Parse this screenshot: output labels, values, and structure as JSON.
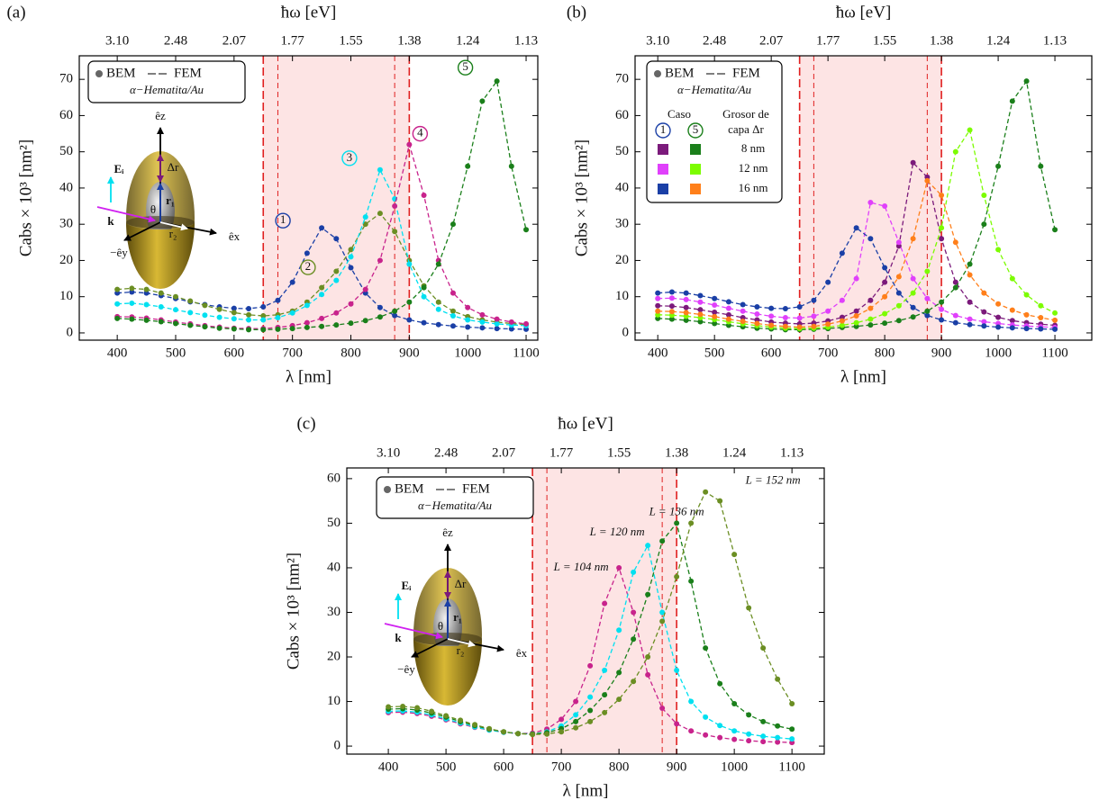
{
  "chart_data": [
    {
      "type": "line",
      "panel": "(a)",
      "x2label": "ħω [eV]",
      "xlabel": "λ [nm]",
      "ylabel": "Cabs × 10³ [nm²]",
      "x": [
        400,
        425,
        450,
        475,
        500,
        525,
        550,
        575,
        600,
        625,
        650,
        675,
        700,
        725,
        750,
        775,
        800,
        825,
        850,
        875,
        900,
        925,
        950,
        975,
        1000,
        1025,
        1050,
        1075,
        1100
      ],
      "xlim": [
        335,
        1120
      ],
      "xticks": [
        400,
        500,
        600,
        700,
        800,
        900,
        1000,
        1100
      ],
      "x2ticks": [
        {
          "value": 400,
          "label": "3.10"
        },
        {
          "value": 500,
          "label": "2.48"
        },
        {
          "value": 600,
          "label": "2.07"
        },
        {
          "value": 700,
          "label": "1.77"
        },
        {
          "value": 800,
          "label": "1.55"
        },
        {
          "value": 900,
          "label": "1.38"
        },
        {
          "value": 1000,
          "label": "1.24"
        },
        {
          "value": 1100,
          "label": "1.13"
        }
      ],
      "ylim": [
        -2,
        76.5
      ],
      "yticks": [
        0,
        10,
        20,
        30,
        40,
        50,
        60,
        70
      ],
      "band": [
        650,
        900
      ],
      "band_color": "#fde4e4",
      "vlines": [
        650,
        675,
        875,
        900
      ],
      "vline_color": "#e02020",
      "legend": {
        "markers": "BEM",
        "lines": "FEM",
        "material": "α−Hematita/Au"
      },
      "inset": {
        "ez": "êz",
        "ex": "êx",
        "ey": "−êy",
        "dr": "Δr",
        "r1": "r₁",
        "r2": "r₂",
        "theta": "θ",
        "E": "Eᵢ",
        "k": "k"
      },
      "series": [
        {
          "name": "1",
          "color": "#1a3fa6",
          "values": [
            11,
            11.3,
            11,
            10.3,
            9.5,
            8.6,
            7.8,
            7.2,
            6.8,
            6.7,
            7.2,
            9,
            14,
            22,
            29,
            26,
            18,
            11,
            7,
            4.8,
            3.6,
            2.8,
            2.3,
            1.9,
            1.6,
            1.4,
            1.2,
            1.1,
            1
          ]
        },
        {
          "name": "2",
          "color": "#6b8e23",
          "values": [
            12,
            12.3,
            12,
            11,
            10,
            8.8,
            7.6,
            6.5,
            5.6,
            5,
            4.7,
            5,
            6,
            8.5,
            12.5,
            17,
            23,
            30,
            33,
            28,
            20,
            13,
            8.5,
            6,
            4.5,
            3.6,
            3,
            2.6,
            2.3
          ]
        },
        {
          "name": "3",
          "color": "#00e0f0",
          "values": [
            8,
            8.2,
            7.8,
            7.2,
            6.4,
            5.6,
            4.9,
            4.3,
            3.9,
            3.6,
            3.6,
            4.2,
            5.5,
            7.6,
            10.6,
            14.5,
            21,
            32,
            45,
            37,
            19,
            10,
            6.5,
            4.7,
            3.6,
            3,
            2.5,
            2.2,
            2
          ]
        },
        {
          "name": "4",
          "color": "#c8238c",
          "values": [
            4.5,
            4.4,
            4.1,
            3.6,
            3,
            2.5,
            2,
            1.6,
            1.3,
            1.2,
            1.2,
            1.5,
            2,
            2.8,
            4,
            5.5,
            8,
            12,
            20,
            35,
            52,
            38,
            20,
            11,
            7,
            5,
            3.8,
            3,
            2.5
          ]
        },
        {
          "name": "5",
          "color": "#1a7f1a",
          "values": [
            4,
            3.8,
            3.5,
            3.1,
            2.6,
            2.1,
            1.7,
            1.3,
            1.1,
            0.9,
            0.9,
            1,
            1.2,
            1.5,
            1.8,
            2.2,
            2.7,
            3.4,
            4.4,
            6,
            8.5,
            12.5,
            19,
            30,
            46,
            64,
            69.5,
            46,
            28.5
          ]
        }
      ]
    },
    {
      "type": "line",
      "panel": "(b)",
      "x2label": "ħω [eV]",
      "xlabel": "λ [nm]",
      "ylabel": "Cabs × 10³ [nm²]",
      "x": [
        400,
        425,
        450,
        475,
        500,
        525,
        550,
        575,
        600,
        625,
        650,
        675,
        700,
        725,
        750,
        775,
        800,
        825,
        850,
        875,
        900,
        925,
        950,
        975,
        1000,
        1025,
        1050,
        1075,
        1100
      ],
      "xlim": [
        360,
        1165
      ],
      "xticks": [
        400,
        500,
        600,
        700,
        800,
        900,
        1000,
        1100
      ],
      "x2ticks": [
        {
          "value": 400,
          "label": "3.10"
        },
        {
          "value": 500,
          "label": "2.48"
        },
        {
          "value": 600,
          "label": "2.07"
        },
        {
          "value": 700,
          "label": "1.77"
        },
        {
          "value": 800,
          "label": "1.55"
        },
        {
          "value": 900,
          "label": "1.38"
        },
        {
          "value": 1000,
          "label": "1.24"
        },
        {
          "value": 1100,
          "label": "1.13"
        }
      ],
      "ylim": [
        -2,
        76.5
      ],
      "yticks": [
        0,
        10,
        20,
        30,
        40,
        50,
        60,
        70
      ],
      "band": [
        650,
        900
      ],
      "band_color": "#fde4e4",
      "vlines": [
        650,
        675,
        875,
        900
      ],
      "vline_color": "#e02020",
      "legend": {
        "markers": "BEM",
        "lines": "FEM",
        "material": "α−Hematita/Au",
        "case_header": "Caso",
        "thickness_header": [
          "Grosor de",
          "capa Δr"
        ],
        "cases": [
          "1",
          "5"
        ],
        "thicknesses": [
          "8 nm",
          "12 nm",
          "16 nm"
        ]
      },
      "series": [
        {
          "color": "#7b1a7b",
          "values": [
            7.5,
            7.4,
            7,
            6.4,
            5.7,
            5,
            4.2,
            3.6,
            3,
            2.7,
            2.5,
            2.7,
            3.3,
            4.3,
            6,
            9,
            14,
            24,
            47,
            43,
            26,
            14,
            8.5,
            5.8,
            4.3,
            3.4,
            2.8,
            2.4,
            2.1
          ]
        },
        {
          "color": "#e040fb",
          "values": [
            9.5,
            9.6,
            9.2,
            8.5,
            7.7,
            6.8,
            6,
            5.2,
            4.6,
            4.2,
            4.1,
            4.6,
            6,
            9,
            15,
            36,
            35,
            25,
            15,
            9.5,
            6.5,
            4.8,
            3.8,
            3.1,
            2.6,
            2.2,
            1.9,
            1.7,
            1.5
          ]
        },
        {
          "color": "#1a3fa6",
          "values": [
            11,
            11.3,
            11,
            10.3,
            9.5,
            8.6,
            7.8,
            7.2,
            6.8,
            6.7,
            7.2,
            9,
            14,
            22,
            29,
            26,
            18,
            11,
            7,
            4.8,
            3.6,
            2.8,
            2.3,
            1.9,
            1.6,
            1.4,
            1.2,
            1.1,
            1
          ]
        },
        {
          "color": "#1a7f1a",
          "values": [
            4,
            3.8,
            3.5,
            3.1,
            2.6,
            2.1,
            1.7,
            1.3,
            1.1,
            0.9,
            0.9,
            1,
            1.2,
            1.5,
            1.8,
            2.2,
            2.7,
            3.4,
            4.4,
            6,
            8.5,
            12.5,
            19,
            30,
            46,
            64,
            69.5,
            46,
            28.5
          ]
        },
        {
          "color": "#7cfc00",
          "values": [
            5,
            4.9,
            4.6,
            4.2,
            3.7,
            3.1,
            2.5,
            2,
            1.6,
            1.3,
            1.2,
            1.3,
            1.6,
            2.1,
            2.8,
            3.8,
            5.3,
            7.5,
            11,
            17,
            29,
            50,
            56,
            38,
            23,
            15,
            10.5,
            7.5,
            5.5
          ]
        },
        {
          "color": "#ff7f1a",
          "values": [
            6,
            5.9,
            5.6,
            5.1,
            4.5,
            3.8,
            3.2,
            2.6,
            2.1,
            1.8,
            1.6,
            1.8,
            2.4,
            3.3,
            4.7,
            6.8,
            10,
            15.5,
            26,
            42,
            38,
            25,
            16,
            11,
            8,
            6.3,
            5,
            4.2,
            3.5
          ]
        }
      ]
    },
    {
      "type": "line",
      "panel": "(c)",
      "x2label": "ħω [eV]",
      "xlabel": "λ [nm]",
      "ylabel": "Cabs × 10³ [nm²]",
      "x": [
        400,
        425,
        450,
        475,
        500,
        525,
        550,
        575,
        600,
        625,
        650,
        675,
        700,
        725,
        750,
        775,
        800,
        825,
        850,
        875,
        900,
        925,
        950,
        975,
        1000,
        1025,
        1050,
        1075,
        1100
      ],
      "xlim": [
        328,
        1156
      ],
      "xticks": [
        400,
        500,
        600,
        700,
        800,
        900,
        1000,
        1100
      ],
      "x2ticks": [
        {
          "value": 400,
          "label": "3.10"
        },
        {
          "value": 500,
          "label": "2.48"
        },
        {
          "value": 600,
          "label": "2.07"
        },
        {
          "value": 700,
          "label": "1.77"
        },
        {
          "value": 800,
          "label": "1.55"
        },
        {
          "value": 900,
          "label": "1.38"
        },
        {
          "value": 1000,
          "label": "1.24"
        },
        {
          "value": 1100,
          "label": "1.13"
        }
      ],
      "ylim": [
        -1.8,
        62.4
      ],
      "yticks": [
        0,
        10,
        20,
        30,
        40,
        50,
        60
      ],
      "band": [
        650,
        900
      ],
      "band_color": "#fde4e4",
      "vlines": [
        650,
        675,
        875,
        900
      ],
      "vline_color": "#e02020",
      "legend": {
        "markers": "BEM",
        "lines": "FEM",
        "material": "α−Hematita/Au"
      },
      "inset": {
        "ez": "êz",
        "ex": "êx",
        "ey": "−êy",
        "dr": "Δr",
        "r1": "r₁",
        "r2": "r₂",
        "theta": "θ",
        "E": "Eᵢ",
        "k": "k"
      },
      "series": [
        {
          "name": "L = 104 nm",
          "color": "#c8238c",
          "values": [
            7.5,
            7.6,
            7.3,
            6.7,
            5.9,
            5,
            4.2,
            3.6,
            3.1,
            2.8,
            2.9,
            3.8,
            6,
            10,
            18,
            32,
            40,
            30,
            16,
            8.5,
            5,
            3.4,
            2.5,
            1.9,
            1.5,
            1.2,
            1,
            0.9,
            0.8
          ]
        },
        {
          "name": "L = 120 nm",
          "color": "#00e0f0",
          "values": [
            7.8,
            7.9,
            7.6,
            7,
            6.1,
            5.2,
            4.3,
            3.6,
            3.1,
            2.8,
            2.7,
            3.2,
            4.5,
            7,
            11,
            17,
            26,
            39,
            45,
            30,
            17,
            10,
            6.5,
            4.6,
            3.4,
            2.7,
            2.2,
            1.9,
            1.6
          ]
        },
        {
          "name": "L = 136 nm",
          "color": "#1a7f1a",
          "values": [
            8.3,
            8.4,
            8.1,
            7.4,
            6.5,
            5.5,
            4.6,
            3.8,
            3.2,
            2.8,
            2.7,
            3,
            3.9,
            5.5,
            8,
            11.5,
            16.5,
            24,
            34,
            46,
            50,
            37,
            22,
            14,
            9.5,
            7,
            5.5,
            4.5,
            3.8
          ]
        },
        {
          "name": "L = 152 nm",
          "color": "#6b8e23",
          "values": [
            8.8,
            8.9,
            8.6,
            7.8,
            6.8,
            5.8,
            4.8,
            3.9,
            3.2,
            2.8,
            2.6,
            2.7,
            3.2,
            4.1,
            5.5,
            7.5,
            10.5,
            14.5,
            20,
            28,
            38,
            50,
            57,
            55,
            43,
            31,
            22,
            15,
            9.5
          ]
        }
      ]
    }
  ]
}
